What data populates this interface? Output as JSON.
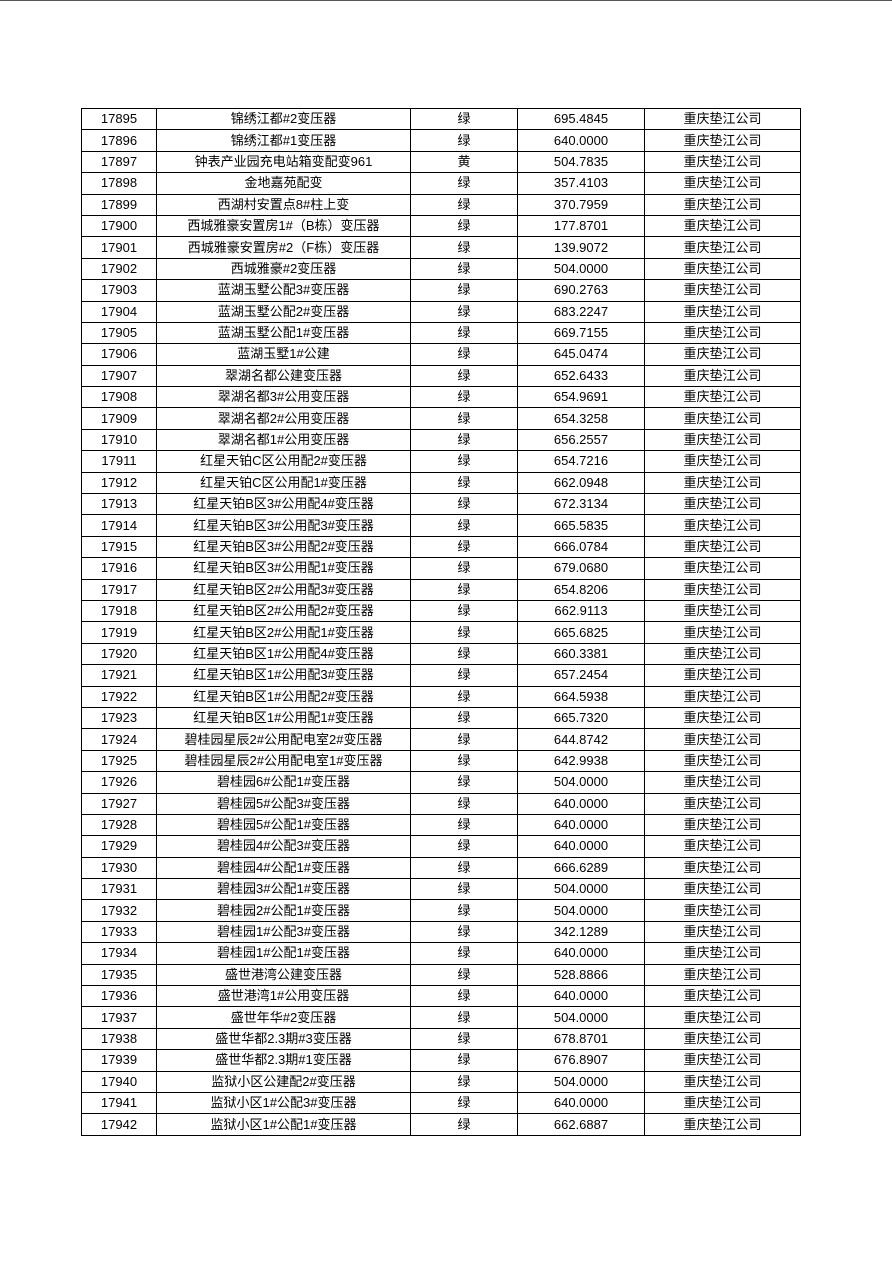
{
  "table": {
    "rows": [
      [
        "17895",
        "锦绣江都#2变压器",
        "绿",
        "695.4845",
        "重庆垫江公司"
      ],
      [
        "17896",
        "锦绣江都#1变压器",
        "绿",
        "640.0000",
        "重庆垫江公司"
      ],
      [
        "17897",
        "钟表产业园充电站箱变配变961",
        "黄",
        "504.7835",
        "重庆垫江公司"
      ],
      [
        "17898",
        "金地嘉苑配变",
        "绿",
        "357.4103",
        "重庆垫江公司"
      ],
      [
        "17899",
        "西湖村安置点8#柱上变",
        "绿",
        "370.7959",
        "重庆垫江公司"
      ],
      [
        "17900",
        "西城雅豪安置房1#（B栋）变压器",
        "绿",
        "177.8701",
        "重庆垫江公司"
      ],
      [
        "17901",
        "西城雅豪安置房#2（F栋）变压器",
        "绿",
        "139.9072",
        "重庆垫江公司"
      ],
      [
        "17902",
        "西城雅豪#2变压器",
        "绿",
        "504.0000",
        "重庆垫江公司"
      ],
      [
        "17903",
        "蓝湖玉墅公配3#变压器",
        "绿",
        "690.2763",
        "重庆垫江公司"
      ],
      [
        "17904",
        "蓝湖玉墅公配2#变压器",
        "绿",
        "683.2247",
        "重庆垫江公司"
      ],
      [
        "17905",
        "蓝湖玉墅公配1#变压器",
        "绿",
        "669.7155",
        "重庆垫江公司"
      ],
      [
        "17906",
        "蓝湖玉墅1#公建",
        "绿",
        "645.0474",
        "重庆垫江公司"
      ],
      [
        "17907",
        "翠湖名都公建变压器",
        "绿",
        "652.6433",
        "重庆垫江公司"
      ],
      [
        "17908",
        "翠湖名都3#公用变压器",
        "绿",
        "654.9691",
        "重庆垫江公司"
      ],
      [
        "17909",
        "翠湖名都2#公用变压器",
        "绿",
        "654.3258",
        "重庆垫江公司"
      ],
      [
        "17910",
        "翠湖名都1#公用变压器",
        "绿",
        "656.2557",
        "重庆垫江公司"
      ],
      [
        "17911",
        "红星天铂C区公用配2#变压器",
        "绿",
        "654.7216",
        "重庆垫江公司"
      ],
      [
        "17912",
        "红星天铂C区公用配1#变压器",
        "绿",
        "662.0948",
        "重庆垫江公司"
      ],
      [
        "17913",
        "红星天铂B区3#公用配4#变压器",
        "绿",
        "672.3134",
        "重庆垫江公司"
      ],
      [
        "17914",
        "红星天铂B区3#公用配3#变压器",
        "绿",
        "665.5835",
        "重庆垫江公司"
      ],
      [
        "17915",
        "红星天铂B区3#公用配2#变压器",
        "绿",
        "666.0784",
        "重庆垫江公司"
      ],
      [
        "17916",
        "红星天铂B区3#公用配1#变压器",
        "绿",
        "679.0680",
        "重庆垫江公司"
      ],
      [
        "17917",
        "红星天铂B区2#公用配3#变压器",
        "绿",
        "654.8206",
        "重庆垫江公司"
      ],
      [
        "17918",
        "红星天铂B区2#公用配2#变压器",
        "绿",
        "662.9113",
        "重庆垫江公司"
      ],
      [
        "17919",
        "红星天铂B区2#公用配1#变压器",
        "绿",
        "665.6825",
        "重庆垫江公司"
      ],
      [
        "17920",
        "红星天铂B区1#公用配4#变压器",
        "绿",
        "660.3381",
        "重庆垫江公司"
      ],
      [
        "17921",
        "红星天铂B区1#公用配3#变压器",
        "绿",
        "657.2454",
        "重庆垫江公司"
      ],
      [
        "17922",
        "红星天铂B区1#公用配2#变压器",
        "绿",
        "664.5938",
        "重庆垫江公司"
      ],
      [
        "17923",
        "红星天铂B区1#公用配1#变压器",
        "绿",
        "665.7320",
        "重庆垫江公司"
      ],
      [
        "17924",
        "碧桂园星辰2#公用配电室2#变压器",
        "绿",
        "644.8742",
        "重庆垫江公司"
      ],
      [
        "17925",
        "碧桂园星辰2#公用配电室1#变压器",
        "绿",
        "642.9938",
        "重庆垫江公司"
      ],
      [
        "17926",
        "碧桂园6#公配1#变压器",
        "绿",
        "504.0000",
        "重庆垫江公司"
      ],
      [
        "17927",
        "碧桂园5#公配3#变压器",
        "绿",
        "640.0000",
        "重庆垫江公司"
      ],
      [
        "17928",
        "碧桂园5#公配1#变压器",
        "绿",
        "640.0000",
        "重庆垫江公司"
      ],
      [
        "17929",
        "碧桂园4#公配3#变压器",
        "绿",
        "640.0000",
        "重庆垫江公司"
      ],
      [
        "17930",
        "碧桂园4#公配1#变压器",
        "绿",
        "666.6289",
        "重庆垫江公司"
      ],
      [
        "17931",
        "碧桂园3#公配1#变压器",
        "绿",
        "504.0000",
        "重庆垫江公司"
      ],
      [
        "17932",
        "碧桂园2#公配1#变压器",
        "绿",
        "504.0000",
        "重庆垫江公司"
      ],
      [
        "17933",
        "碧桂园1#公配3#变压器",
        "绿",
        "342.1289",
        "重庆垫江公司"
      ],
      [
        "17934",
        "碧桂园1#公配1#变压器",
        "绿",
        "640.0000",
        "重庆垫江公司"
      ],
      [
        "17935",
        "盛世港湾公建变压器",
        "绿",
        "528.8866",
        "重庆垫江公司"
      ],
      [
        "17936",
        "盛世港湾1#公用变压器",
        "绿",
        "640.0000",
        "重庆垫江公司"
      ],
      [
        "17937",
        "盛世年华#2变压器",
        "绿",
        "504.0000",
        "重庆垫江公司"
      ],
      [
        "17938",
        "盛世华都2.3期#3变压器",
        "绿",
        "678.8701",
        "重庆垫江公司"
      ],
      [
        "17939",
        "盛世华都2.3期#1变压器",
        "绿",
        "676.8907",
        "重庆垫江公司"
      ],
      [
        "17940",
        "监狱小区公建配2#变压器",
        "绿",
        "504.0000",
        "重庆垫江公司"
      ],
      [
        "17941",
        "监狱小区1#公配3#变压器",
        "绿",
        "640.0000",
        "重庆垫江公司"
      ],
      [
        "17942",
        "监狱小区1#公配1#变压器",
        "绿",
        "662.6887",
        "重庆垫江公司"
      ]
    ]
  }
}
